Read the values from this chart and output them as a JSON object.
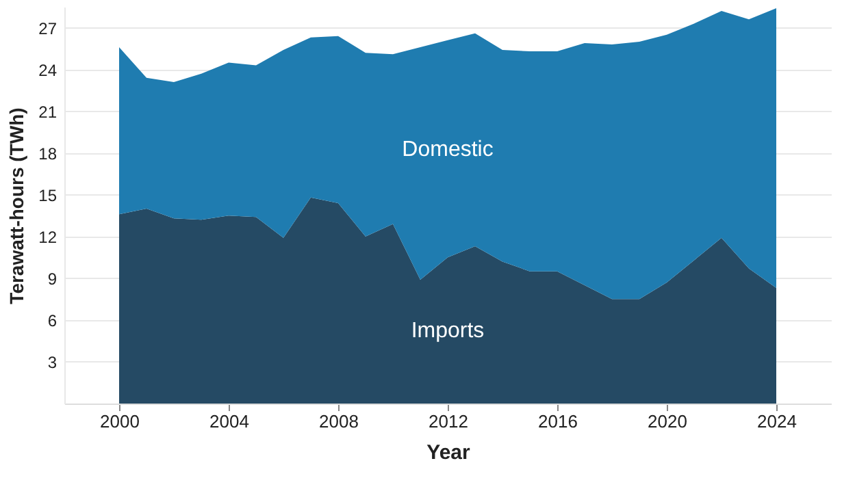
{
  "chart_data": {
    "type": "area",
    "stacked": true,
    "xlabel": "Year",
    "ylabel": "Terawatt-hours (TWh)",
    "x": [
      2000,
      2001,
      2002,
      2003,
      2004,
      2005,
      2006,
      2007,
      2008,
      2009,
      2010,
      2011,
      2012,
      2013,
      2014,
      2015,
      2016,
      2017,
      2018,
      2019,
      2020,
      2021,
      2022,
      2023,
      2024
    ],
    "series": [
      {
        "name": "Imports",
        "color": "#254a64",
        "values": [
          13.6,
          14.0,
          13.3,
          13.2,
          13.5,
          13.4,
          11.9,
          14.8,
          14.4,
          12.0,
          12.9,
          8.9,
          10.5,
          11.3,
          10.2,
          9.5,
          9.5,
          8.5,
          7.5,
          7.5,
          8.7,
          10.3,
          11.9,
          9.7,
          8.3
        ]
      },
      {
        "name": "Domestic",
        "color": "#1f7cb0",
        "values": [
          12.0,
          9.4,
          9.8,
          10.5,
          11.0,
          10.9,
          13.5,
          11.5,
          12.0,
          13.2,
          12.2,
          16.7,
          15.6,
          15.3,
          15.2,
          15.8,
          15.8,
          17.4,
          18.3,
          18.5,
          17.8,
          17.0,
          16.3,
          17.9,
          20.1
        ]
      }
    ],
    "xlim": [
      1998,
      2026
    ],
    "xticks": [
      2000,
      2004,
      2008,
      2012,
      2016,
      2020,
      2024
    ],
    "ylim": [
      0,
      28.5
    ],
    "yticks": [
      3,
      6,
      9,
      12,
      15,
      18,
      21,
      24,
      27
    ],
    "grid": "y",
    "legend": false
  }
}
